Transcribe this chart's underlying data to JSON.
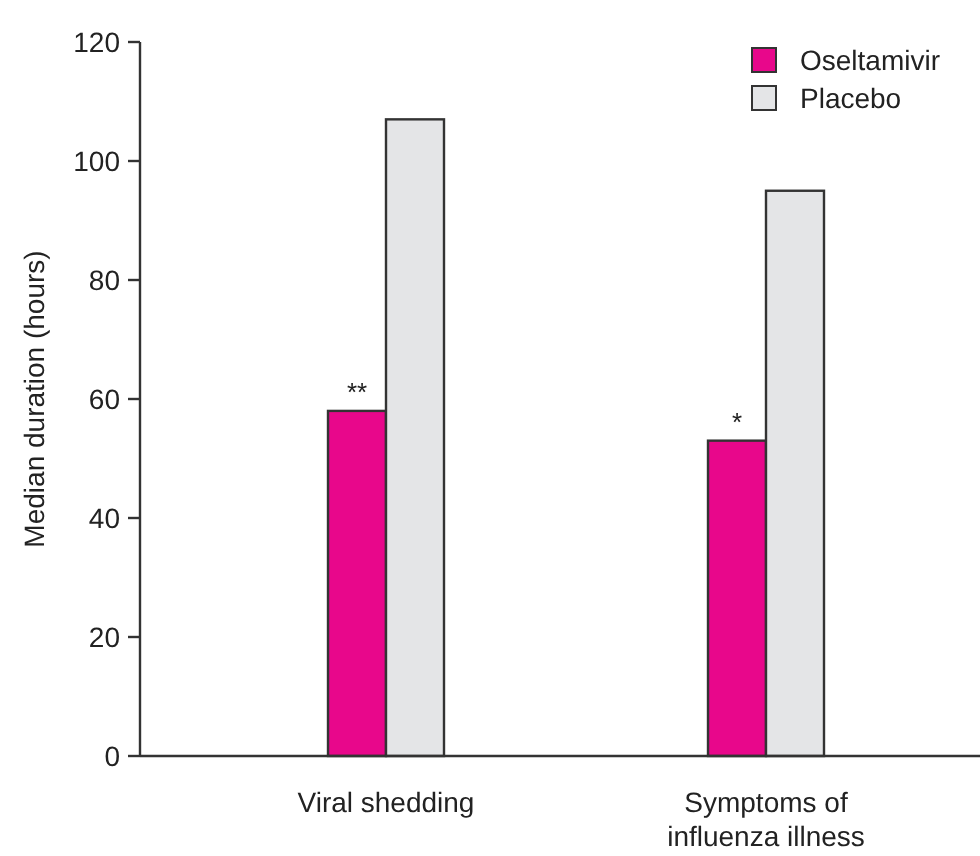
{
  "chart_data": {
    "type": "bar",
    "ylabel": "Median duration (hours)",
    "categories": [
      "Viral shedding",
      "Symptoms of influenza illness"
    ],
    "series": [
      {
        "name": "Oseltamivir",
        "color": "#e8078b",
        "values": [
          58,
          53
        ]
      },
      {
        "name": "Placebo",
        "color": "#e4e5e7",
        "values": [
          107,
          95
        ]
      }
    ],
    "ylim": [
      0,
      120
    ],
    "yticks": [
      0,
      20,
      40,
      60,
      80,
      100,
      120
    ],
    "grid": false,
    "legend": "top right",
    "annotations": [
      {
        "text": "**",
        "x": "Viral shedding",
        "y": 58
      },
      {
        "text": "*",
        "x": "Symptoms of influenza illness",
        "y": 53
      }
    ]
  }
}
